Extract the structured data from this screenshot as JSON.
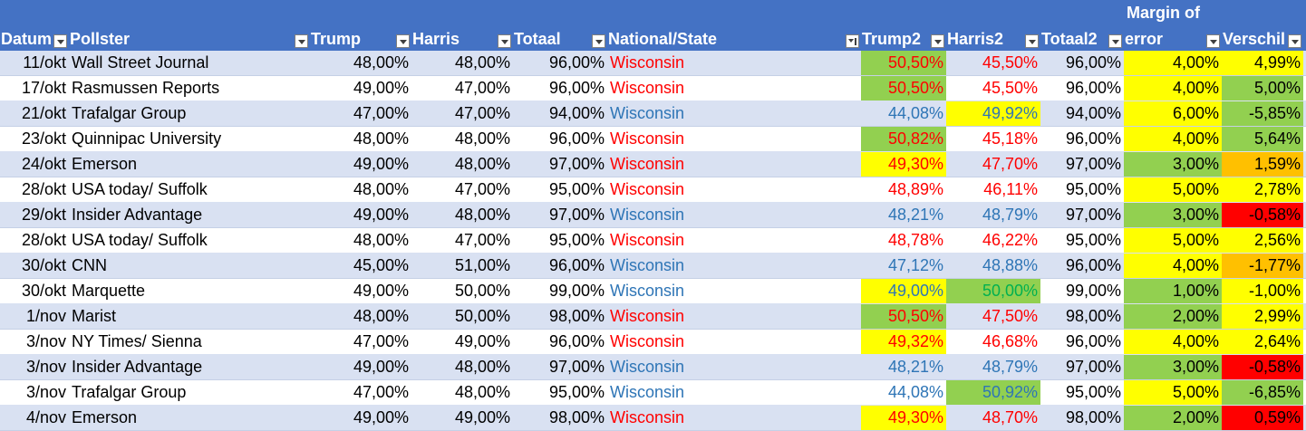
{
  "colors": {
    "header_bg": "#4472c4",
    "band_bg": "#d9e1f2",
    "green": "#92d050",
    "yellow": "#ffff00",
    "orange": "#ffc000",
    "red_fill": "#ff0000",
    "text_red": "#ff0000",
    "text_blue": "#2e75b6",
    "text_green": "#00b050"
  },
  "headers": [
    {
      "label": "Datum",
      "filter_icon": "dropdown-arrow-icon"
    },
    {
      "label": "Pollster",
      "filter_icon": "dropdown-arrow-icon"
    },
    {
      "label": "Trump",
      "filter_icon": "dropdown-arrow-icon"
    },
    {
      "label": "Harris",
      "filter_icon": "dropdown-arrow-icon"
    },
    {
      "label": "Totaal",
      "filter_icon": "dropdown-arrow-icon"
    },
    {
      "label": "National/State",
      "filter_icon": "filter-active-icon"
    },
    {
      "label": "Trump2",
      "filter_icon": "dropdown-arrow-icon"
    },
    {
      "label": "Harris2",
      "filter_icon": "dropdown-arrow-icon"
    },
    {
      "label": "Totaal2",
      "filter_icon": "dropdown-arrow-icon"
    },
    {
      "label": "Margin of",
      "label2": "error",
      "filter_icon": "dropdown-arrow-icon"
    },
    {
      "label": "Verschil",
      "filter_icon": "dropdown-arrow-icon"
    }
  ],
  "rows": [
    {
      "datum": "11/okt",
      "pollster": "Wall Street Journal",
      "trump": "48,00%",
      "harris": "48,00%",
      "totaal": "96,00%",
      "state": "Wisconsin",
      "state_color": "red",
      "trump2": "50,50%",
      "trump2_color": "red",
      "trump2_fill": "green",
      "harris2": "45,50%",
      "harris2_color": "red",
      "harris2_fill": "",
      "totaal2": "96,00%",
      "margin": "4,00%",
      "margin_fill": "yellow",
      "verschil": "4,99%",
      "verschil_fill": "yellow"
    },
    {
      "datum": "17/okt",
      "pollster": "Rasmussen Reports",
      "trump": "49,00%",
      "harris": "47,00%",
      "totaal": "96,00%",
      "state": "Wisconsin",
      "state_color": "red",
      "trump2": "50,50%",
      "trump2_color": "red",
      "trump2_fill": "green",
      "harris2": "45,50%",
      "harris2_color": "red",
      "harris2_fill": "",
      "totaal2": "96,00%",
      "margin": "4,00%",
      "margin_fill": "yellow",
      "verschil": "5,00%",
      "verschil_fill": "green"
    },
    {
      "datum": "21/okt",
      "pollster": "Trafalgar Group",
      "trump": "47,00%",
      "harris": "47,00%",
      "totaal": "94,00%",
      "state": "Wisconsin",
      "state_color": "blue",
      "trump2": "44,08%",
      "trump2_color": "blue",
      "trump2_fill": "",
      "harris2": "49,92%",
      "harris2_color": "blue",
      "harris2_fill": "yellow",
      "totaal2": "94,00%",
      "margin": "6,00%",
      "margin_fill": "yellow",
      "verschil": "-5,85%",
      "verschil_fill": "green"
    },
    {
      "datum": "23/okt",
      "pollster": "Quinnipac University",
      "trump": "48,00%",
      "harris": "48,00%",
      "totaal": "96,00%",
      "state": "Wisconsin",
      "state_color": "red",
      "trump2": "50,82%",
      "trump2_color": "red",
      "trump2_fill": "green",
      "harris2": "45,18%",
      "harris2_color": "red",
      "harris2_fill": "",
      "totaal2": "96,00%",
      "margin": "4,00%",
      "margin_fill": "yellow",
      "verschil": "5,64%",
      "verschil_fill": "green"
    },
    {
      "datum": "24/okt",
      "pollster": "Emerson",
      "trump": "49,00%",
      "harris": "48,00%",
      "totaal": "97,00%",
      "state": "Wisconsin",
      "state_color": "red",
      "trump2": "49,30%",
      "trump2_color": "red",
      "trump2_fill": "yellow",
      "harris2": "47,70%",
      "harris2_color": "red",
      "harris2_fill": "",
      "totaal2": "97,00%",
      "margin": "3,00%",
      "margin_fill": "green",
      "verschil": "1,59%",
      "verschil_fill": "orange"
    },
    {
      "datum": "28/okt",
      "pollster": "USA today/ Suffolk",
      "trump": "48,00%",
      "harris": "47,00%",
      "totaal": "95,00%",
      "state": "Wisconsin",
      "state_color": "red",
      "trump2": "48,89%",
      "trump2_color": "red",
      "trump2_fill": "",
      "harris2": "46,11%",
      "harris2_color": "red",
      "harris2_fill": "",
      "totaal2": "95,00%",
      "margin": "5,00%",
      "margin_fill": "yellow",
      "verschil": "2,78%",
      "verschil_fill": "yellow"
    },
    {
      "datum": "29/okt",
      "pollster": "Insider Advantage",
      "trump": "49,00%",
      "harris": "48,00%",
      "totaal": "97,00%",
      "state": "Wisconsin",
      "state_color": "blue",
      "trump2": "48,21%",
      "trump2_color": "blue",
      "trump2_fill": "",
      "harris2": "48,79%",
      "harris2_color": "blue",
      "harris2_fill": "",
      "totaal2": "97,00%",
      "margin": "3,00%",
      "margin_fill": "green",
      "verschil": "-0,58%",
      "verschil_fill": "red"
    },
    {
      "datum": "28/okt",
      "pollster": "USA today/ Suffolk",
      "trump": "48,00%",
      "harris": "47,00%",
      "totaal": "95,00%",
      "state": "Wisconsin",
      "state_color": "red",
      "trump2": "48,78%",
      "trump2_color": "red",
      "trump2_fill": "",
      "harris2": "46,22%",
      "harris2_color": "red",
      "harris2_fill": "",
      "totaal2": "95,00%",
      "margin": "5,00%",
      "margin_fill": "yellow",
      "verschil": "2,56%",
      "verschil_fill": "yellow"
    },
    {
      "datum": "30/okt",
      "pollster": "CNN",
      "trump": "45,00%",
      "harris": "51,00%",
      "totaal": "96,00%",
      "state": "Wisconsin",
      "state_color": "blue",
      "trump2": "47,12%",
      "trump2_color": "blue",
      "trump2_fill": "",
      "harris2": "48,88%",
      "harris2_color": "blue",
      "harris2_fill": "",
      "totaal2": "96,00%",
      "margin": "4,00%",
      "margin_fill": "yellow",
      "verschil": "-1,77%",
      "verschil_fill": "orange"
    },
    {
      "datum": "30/okt",
      "pollster": "Marquette",
      "trump": "49,00%",
      "harris": "50,00%",
      "totaal": "99,00%",
      "state": "Wisconsin",
      "state_color": "blue",
      "trump2": "49,00%",
      "trump2_color": "blue",
      "trump2_fill": "yellow",
      "harris2": "50,00%",
      "harris2_color": "green",
      "harris2_fill": "green",
      "totaal2": "99,00%",
      "margin": "1,00%",
      "margin_fill": "green",
      "verschil": "-1,00%",
      "verschil_fill": "yellow"
    },
    {
      "datum": "1/nov",
      "pollster": "Marist",
      "trump": "48,00%",
      "harris": "50,00%",
      "totaal": "98,00%",
      "state": "Wisconsin",
      "state_color": "red",
      "trump2": "50,50%",
      "trump2_color": "red",
      "trump2_fill": "green",
      "harris2": "47,50%",
      "harris2_color": "red",
      "harris2_fill": "",
      "totaal2": "98,00%",
      "margin": "2,00%",
      "margin_fill": "green",
      "verschil": "2,99%",
      "verschil_fill": "yellow"
    },
    {
      "datum": "3/nov",
      "pollster": "NY Times/ Sienna",
      "trump": "47,00%",
      "harris": "49,00%",
      "totaal": "96,00%",
      "state": "Wisconsin",
      "state_color": "red",
      "trump2": "49,32%",
      "trump2_color": "red",
      "trump2_fill": "yellow",
      "harris2": "46,68%",
      "harris2_color": "red",
      "harris2_fill": "",
      "totaal2": "96,00%",
      "margin": "4,00%",
      "margin_fill": "yellow",
      "verschil": "2,64%",
      "verschil_fill": "yellow"
    },
    {
      "datum": "3/nov",
      "pollster": "Insider Advantage",
      "trump": "49,00%",
      "harris": "48,00%",
      "totaal": "97,00%",
      "state": "Wisconsin",
      "state_color": "blue",
      "trump2": "48,21%",
      "trump2_color": "blue",
      "trump2_fill": "",
      "harris2": "48,79%",
      "harris2_color": "blue",
      "harris2_fill": "",
      "totaal2": "97,00%",
      "margin": "3,00%",
      "margin_fill": "green",
      "verschil": "-0,58%",
      "verschil_fill": "red"
    },
    {
      "datum": "3/nov",
      "pollster": "Trafalgar Group",
      "trump": "47,00%",
      "harris": "48,00%",
      "totaal": "95,00%",
      "state": "Wisconsin",
      "state_color": "blue",
      "trump2": "44,08%",
      "trump2_color": "blue",
      "trump2_fill": "",
      "harris2": "50,92%",
      "harris2_color": "blue",
      "harris2_fill": "green",
      "totaal2": "95,00%",
      "margin": "5,00%",
      "margin_fill": "yellow",
      "verschil": "-6,85%",
      "verschil_fill": "green"
    },
    {
      "datum": "4/nov",
      "pollster": "Emerson",
      "trump": "49,00%",
      "harris": "49,00%",
      "totaal": "98,00%",
      "state": "Wisconsin",
      "state_color": "red",
      "trump2": "49,30%",
      "trump2_color": "red",
      "trump2_fill": "yellow",
      "harris2": "48,70%",
      "harris2_color": "red",
      "harris2_fill": "",
      "totaal2": "98,00%",
      "margin": "2,00%",
      "margin_fill": "green",
      "verschil": "0,59%",
      "verschil_fill": "red"
    }
  ]
}
